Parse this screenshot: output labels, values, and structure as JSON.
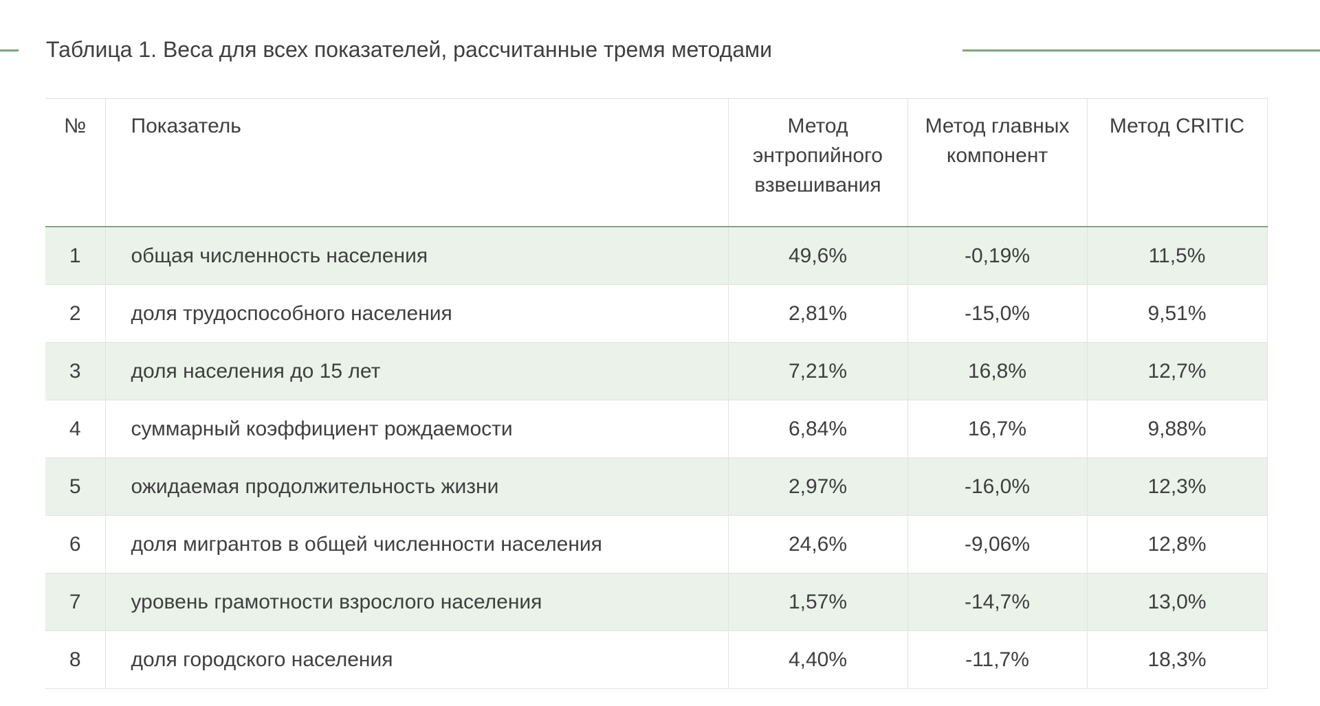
{
  "title": "Таблица 1. Веса для всех показателей, рассчитанные тремя методами",
  "colors": {
    "accent": "#7aa87a",
    "stripe": "#eaf2ea",
    "text": "#3f3f3f"
  },
  "table": {
    "headers": [
      "№",
      "Показатель",
      "Метод энтропийного взвешивания",
      "Метод главных компонент",
      "Метод CRITIC"
    ],
    "rows": [
      [
        "1",
        "общая численность населения",
        "49,6%",
        "-0,19%",
        "11,5%"
      ],
      [
        "2",
        "доля трудоспособного населения",
        "2,81%",
        "-15,0%",
        "9,51%"
      ],
      [
        "3",
        "доля населения до 15 лет",
        "7,21%",
        "16,8%",
        "12,7%"
      ],
      [
        "4",
        "суммарный коэффициент рождаемости",
        "6,84%",
        "16,7%",
        "9,88%"
      ],
      [
        "5",
        "ожидаемая продолжительность жизни",
        "2,97%",
        "-16,0%",
        "12,3%"
      ],
      [
        "6",
        "доля мигрантов в общей численности населения",
        "24,6%",
        "-9,06%",
        "12,8%"
      ],
      [
        "7",
        "уровень грамотности взрослого населения",
        "1,57%",
        "-14,7%",
        "13,0%"
      ],
      [
        "8",
        "доля городского населения",
        "4,40%",
        "-11,7%",
        "18,3%"
      ]
    ]
  }
}
